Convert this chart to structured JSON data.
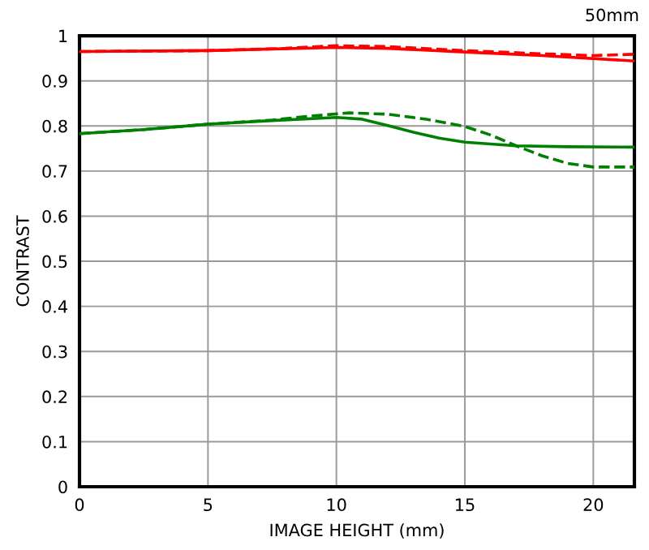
{
  "chart_data": {
    "type": "line",
    "xlabel": "IMAGE HEIGHT (mm)",
    "ylabel": "CONTRAST",
    "annotations": [
      "50mm"
    ],
    "xlim": [
      0,
      21.6
    ],
    "ylim": [
      0,
      1
    ],
    "xticks": [
      0,
      5,
      10,
      15,
      20
    ],
    "yticks": [
      0,
      0.1,
      0.2,
      0.3,
      0.4,
      0.5,
      0.6,
      0.7,
      0.8,
      0.9,
      1
    ],
    "grid": true,
    "legend": false,
    "marker": "none",
    "series": [
      {
        "color": "#ff0000",
        "line_style": "solid",
        "x": [
          0,
          5,
          10,
          12,
          15,
          18,
          21.6
        ],
        "values": [
          0.965,
          0.967,
          0.974,
          0.972,
          0.964,
          0.956,
          0.944
        ]
      },
      {
        "color": "#ff0000",
        "line_style": "dashed",
        "x": [
          0,
          5,
          8,
          10,
          12,
          15,
          18,
          20,
          21.6
        ],
        "values": [
          0.965,
          0.967,
          0.972,
          0.978,
          0.976,
          0.967,
          0.96,
          0.956,
          0.959
        ]
      },
      {
        "color": "#008000",
        "line_style": "solid",
        "x": [
          0,
          2.5,
          5,
          7.5,
          10,
          11,
          12,
          13,
          14,
          15,
          17,
          19,
          21.6
        ],
        "values": [
          0.783,
          0.792,
          0.804,
          0.812,
          0.819,
          0.815,
          0.801,
          0.786,
          0.773,
          0.764,
          0.756,
          0.754,
          0.753
        ]
      },
      {
        "color": "#008000",
        "line_style": "dashed",
        "x": [
          0,
          2.5,
          5,
          7.5,
          9,
          10.5,
          12,
          13.5,
          15,
          16,
          17,
          18,
          19,
          20,
          21.6
        ],
        "values": [
          0.783,
          0.792,
          0.804,
          0.813,
          0.822,
          0.829,
          0.826,
          0.815,
          0.799,
          0.78,
          0.756,
          0.734,
          0.717,
          0.709,
          0.709
        ]
      }
    ]
  }
}
